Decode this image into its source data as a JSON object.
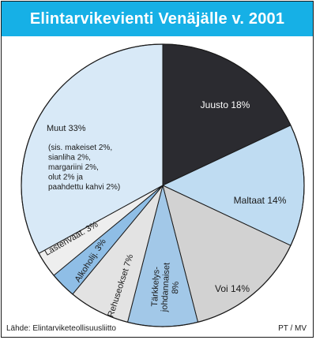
{
  "chart_data": {
    "type": "pie",
    "title": "Elintarvikevienti Venäjälle v. 2001",
    "start_angle_deg": 0,
    "slices": [
      {
        "label": "Juusto 18%",
        "value": 18,
        "color": "#2b2b30",
        "text_color": "#ffffff"
      },
      {
        "label": "Maltaat 14%",
        "value": 14,
        "color": "#bfdcf2",
        "text_color": "#1a1a1a"
      },
      {
        "label": "Voi 14%",
        "value": 14,
        "color": "#d2d2d2",
        "text_color": "#1a1a1a"
      },
      {
        "label": "Tärkkelys-\njohdannaiset\n8%",
        "value": 8,
        "color": "#a2c8e8",
        "text_color": "#1a1a1a"
      },
      {
        "label": "Rehuseokset 7%",
        "value": 7,
        "color": "#e3e3e3",
        "text_color": "#1a1a1a"
      },
      {
        "label": "Alkoholij. 3%",
        "value": 3,
        "color": "#8fbee6",
        "text_color": "#1a1a1a"
      },
      {
        "label": "Lastenvaat. 3%",
        "value": 3,
        "color": "#eeeeee",
        "text_color": "#1a1a1a"
      },
      {
        "label": "Muut 33%",
        "value": 33,
        "color": "#d8e9f7",
        "text_color": "#1a1a1a",
        "note": "(sis. makeiset 2%,\nsianliha 2%,\nmargariini 2%,\nolut 2% ja\npaahdettu kahvi 2%)"
      }
    ]
  },
  "source": "Lähde: Elintarviketeollisuusliitto",
  "credit": "PT / MV"
}
